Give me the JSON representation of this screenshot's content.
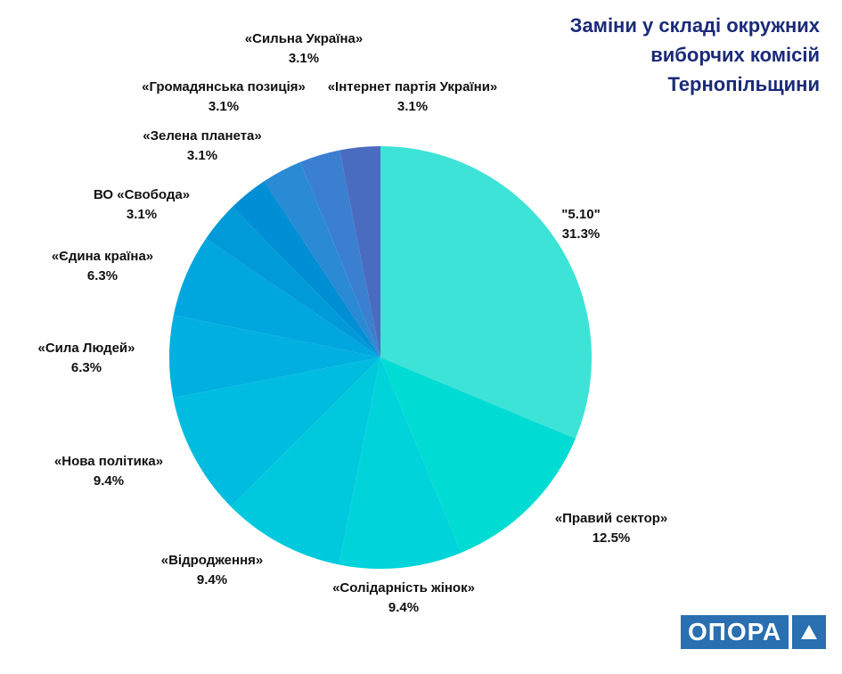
{
  "title_lines": [
    "Заміни у складі окружних",
    "виборчих комісій",
    "Тернопільщини"
  ],
  "logo": {
    "text": "ОПОРА"
  },
  "chart_data": {
    "type": "pie",
    "title": "Заміни у складі окружних виборчих комісій Тернопільщини",
    "start": "12 o'clock",
    "direction": "clockwise",
    "slices": [
      {
        "label": "\"5.10\"",
        "value": 31.3,
        "value_label": "31.3%",
        "color": "#3de3d6"
      },
      {
        "label": "«Правий сектор»",
        "value": 12.5,
        "value_label": "12.5%",
        "color": "#00dcd4"
      },
      {
        "label": "«Солідарність жінок»",
        "value": 9.4,
        "value_label": "9.4%",
        "color": "#00d3d9"
      },
      {
        "label": "«Відродження»",
        "value": 9.4,
        "value_label": "9.4%",
        "color": "#00c9dd"
      },
      {
        "label": "«Нова політика»",
        "value": 9.4,
        "value_label": "9.4%",
        "color": "#00bde0"
      },
      {
        "label": "«Сила Людей»",
        "value": 6.3,
        "value_label": "6.3%",
        "color": "#00b0e0"
      },
      {
        "label": "«Єдина країна»",
        "value": 6.3,
        "value_label": "6.3%",
        "color": "#00a6de"
      },
      {
        "label": "ВО «Свобода»",
        "value": 3.1,
        "value_label": "3.1%",
        "color": "#009ad9"
      },
      {
        "label": "«Зелена планета»",
        "value": 3.1,
        "value_label": "3.1%",
        "color": "#008fd4"
      },
      {
        "label": "«Громадянська позиція»",
        "value": 3.1,
        "value_label": "3.1%",
        "color": "#2a8ad3"
      },
      {
        "label": "«Сильна Україна»",
        "value": 3.1,
        "value_label": "3.1%",
        "color": "#3a7fd0"
      },
      {
        "label": "«Інтернет партія України»",
        "value": 3.1,
        "value_label": "3.1%",
        "color": "#4a6cc0"
      }
    ]
  }
}
